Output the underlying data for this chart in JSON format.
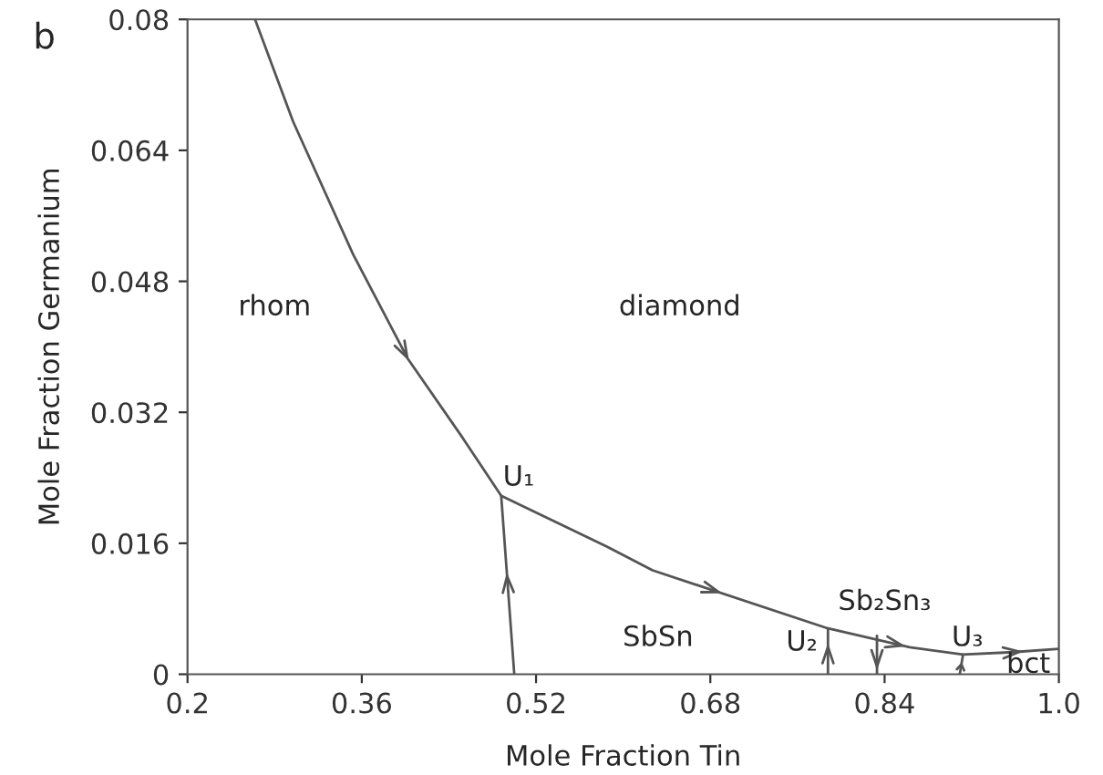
{
  "chart_data": {
    "type": "line",
    "xlabel": "Mole Fraction Tin",
    "ylabel": "Mole Fraction Germanium",
    "xlim": [
      0.2,
      1.0
    ],
    "xticks": [
      0.2,
      0.36,
      0.52,
      0.68,
      0.84,
      {
        "value": 1.0,
        "label": "1.0"
      }
    ],
    "ylim": [
      0,
      0.08
    ],
    "yticks": [
      0,
      0.016,
      0.032,
      0.048,
      0.064,
      0.08
    ],
    "grid": false,
    "legend": false,
    "marker": "none",
    "line_style": "solid",
    "series": [
      {
        "color": "#555555",
        "x": [
          0.262,
          0.297,
          0.352,
          0.402,
          0.452,
          0.488,
          0.585,
          0.627,
          0.788,
          0.863,
          0.912,
          0.958,
          1.0
        ],
        "values": [
          0.08,
          0.0675,
          0.0513,
          0.0386,
          0.029,
          0.0218,
          0.0156,
          0.0127,
          0.0056,
          0.0033,
          0.0024,
          0.0027,
          0.0031
        ]
      },
      {
        "color": "#555555",
        "x": [
          0.5,
          0.488
        ],
        "values": [
          0,
          0.0218
        ]
      },
      {
        "color": "#555555",
        "x": [
          0.788,
          0.788
        ],
        "values": [
          0,
          0.0056
        ]
      },
      {
        "color": "#555555",
        "x": [
          0.833,
          0.833
        ],
        "values": [
          0.0047,
          0
        ]
      },
      {
        "color": "#555555",
        "x": [
          0.909,
          0.912
        ],
        "values": [
          0,
          0.0024
        ]
      }
    ],
    "annotations": [
      "b",
      "rhom",
      "diamond",
      "U₁",
      "SbSn",
      "U₂",
      "Sb₂Sn₃",
      "U₃",
      "bct"
    ]
  }
}
